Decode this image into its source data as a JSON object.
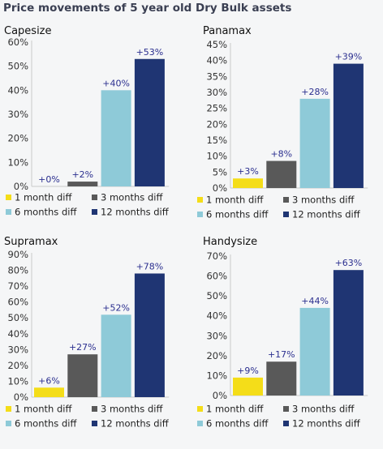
{
  "title": "Price movements of 5 year old Dry Bulk assets",
  "legend": [
    {
      "name": "1 month diff",
      "color": "#f4dd19"
    },
    {
      "name": "3 months diff",
      "color": "#595959"
    },
    {
      "name": "6 months diff",
      "color": "#8ecad8"
    },
    {
      "name": "12 months diff",
      "color": "#1f3573"
    }
  ],
  "chart_data": [
    {
      "type": "bar",
      "title": "Capesize",
      "categories": [
        "1 month diff",
        "3 months diff",
        "6 months diff",
        "12 months diff"
      ],
      "values": [
        0,
        2,
        40,
        53
      ],
      "data_labels": [
        "+0%",
        "+2%",
        "+40%",
        "+53%"
      ],
      "ylim": [
        0,
        60
      ],
      "yticks": [
        "0%",
        "10%",
        "20%",
        "30%",
        "40%",
        "50%",
        "60%"
      ],
      "legend_position": "bottom",
      "grid": false
    },
    {
      "type": "bar",
      "title": "Panamax",
      "categories": [
        "1 month diff",
        "3 months diff",
        "6 months diff",
        "12 months diff"
      ],
      "values": [
        3,
        8.5,
        28,
        39
      ],
      "data_labels": [
        "+3%",
        "+8%",
        "+28%",
        "+39%"
      ],
      "ylim": [
        0,
        45
      ],
      "yticks": [
        "0%",
        "5%",
        "10%",
        "15%",
        "20%",
        "25%",
        "30%",
        "35%",
        "40%",
        "45%"
      ],
      "legend_position": "bottom",
      "grid": false
    },
    {
      "type": "bar",
      "title": "Supramax",
      "categories": [
        "1 month diff",
        "3 months diff",
        "6 months diff",
        "12 months diff"
      ],
      "values": [
        6,
        27,
        52,
        78
      ],
      "data_labels": [
        "+6%",
        "+27%",
        "+52%",
        "+78%"
      ],
      "ylim": [
        0,
        90
      ],
      "yticks": [
        "0%",
        "10%",
        "20%",
        "30%",
        "40%",
        "50%",
        "60%",
        "70%",
        "80%",
        "90%"
      ],
      "legend_position": "bottom",
      "grid": false
    },
    {
      "type": "bar",
      "title": "Handysize",
      "categories": [
        "1 month diff",
        "3 months diff",
        "6 months diff",
        "12 months diff"
      ],
      "values": [
        9,
        17,
        44,
        63
      ],
      "data_labels": [
        "+9%",
        "+17%",
        "+44%",
        "+63%"
      ],
      "ylim": [
        0,
        70
      ],
      "yticks": [
        "0%",
        "10%",
        "20%",
        "30%",
        "40%",
        "50%",
        "60%",
        "70%"
      ],
      "legend_position": "bottom",
      "grid": false
    }
  ]
}
